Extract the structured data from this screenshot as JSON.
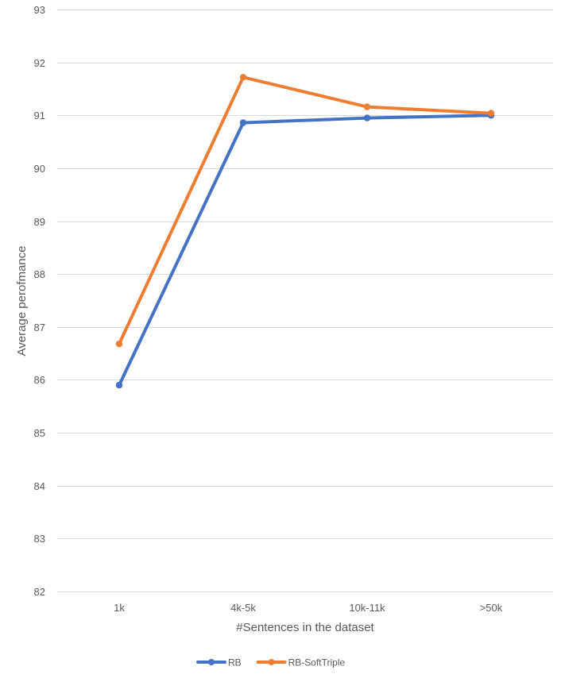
{
  "chart_data": {
    "type": "line",
    "title": "",
    "xlabel": "#Sentences in the dataset",
    "ylabel": "Average perofmance",
    "categories": [
      "1k",
      "4k-5k",
      "10k-11k",
      ">50k"
    ],
    "ylim": [
      82,
      93
    ],
    "yticks": [
      82,
      83,
      84,
      85,
      86,
      87,
      88,
      89,
      90,
      91,
      92,
      93
    ],
    "grid": true,
    "legend_position": "bottom",
    "series": [
      {
        "name": "RB",
        "color": "#4472c4",
        "values": [
          85.9,
          90.86,
          90.95,
          91.0
        ]
      },
      {
        "name": "RB-SoftTriple",
        "color": "#ed7d31",
        "values": [
          86.68,
          91.72,
          91.16,
          91.04
        ]
      }
    ]
  }
}
